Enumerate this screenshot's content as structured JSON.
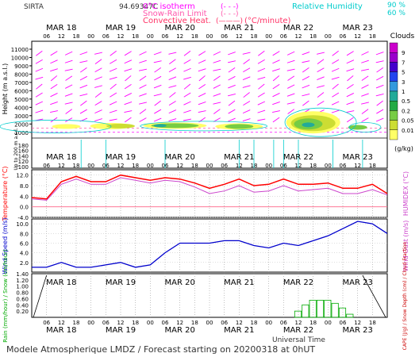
{
  "header": {
    "site": "SIRTA",
    "altitude_readout": "94.69347C",
    "isotherm_label": "0°C isotherm",
    "snow_rain_label": "Snow-Rain Limit",
    "convective_label": "Convective Heat.",
    "convective_unit": "(°C/minute)",
    "dash_marker": "(- - -)",
    "line_marker": "(———)",
    "rh_label": "Relative Humidity",
    "rh_90": "90 %",
    "rh_60": "60 %"
  },
  "footer": {
    "title": "Modele Atmospherique LMDZ / Forecast starting on 20200318 at 0hUT",
    "xaxis": "Universal Time"
  },
  "colors": {
    "temperature": "#ff0000",
    "humidex": "#cc44cc",
    "wind_speed": "#0000cc",
    "wind_arrows": "#ff00ff",
    "rh_contour": "#00cccc",
    "isotherm": "#ff00ff",
    "rain": "#00aa00",
    "snow": "#0000ff"
  },
  "days": [
    "MAR 18",
    "MAR 19",
    "MAR 20",
    "MAR 21",
    "MAR 22",
    "MAR 23"
  ],
  "hour_ticks": [
    "06",
    "12",
    "18",
    "00"
  ],
  "clouds_legend": {
    "title": "Clouds",
    "unit": "(g/kg)",
    "labels": [
      "9",
      "7",
      "5",
      "3",
      "1",
      "0.5",
      "0.2",
      "0.05",
      "0.01"
    ],
    "colors": [
      "#cc00cc",
      "#9900cc",
      "#4400cc",
      "#2244ee",
      "#3399dd",
      "#22aa99",
      "#22aa44",
      "#77cc44",
      "#ccdd33",
      "#ffff66"
    ]
  },
  "chart_data": [
    {
      "type": "heatmap",
      "title": "Clouds",
      "ylabel": "Height (m a.s.l.)",
      "ylabel_lower": "Up to 200 m a.s.l.",
      "yticks_upper": [
        1000,
        2000,
        3000,
        4000,
        5000,
        6000,
        7000,
        8000,
        9000,
        10000,
        11000
      ],
      "yticks_lower": [
        100,
        120,
        140,
        160,
        180
      ],
      "cloud_layer": {
        "height_m": [
          1500,
          2500
        ],
        "peak_value_gkg": 0.5
      }
    },
    {
      "type": "line",
      "ylabel": "Temperature (°C)",
      "ylabel_right": "HUMIDEX (°C)",
      "yticks": [
        -4.0,
        0.0,
        4.0,
        8.0,
        12.0
      ],
      "ylim": [
        -4,
        14
      ],
      "x_hours": [
        0,
        6,
        12,
        18,
        24,
        30,
        36,
        42,
        48,
        54,
        60,
        66,
        72,
        78,
        84,
        90,
        96,
        102,
        108,
        114,
        120,
        126,
        132,
        138,
        144
      ],
      "series": [
        {
          "name": "Temperature",
          "values": [
            3.5,
            3.0,
            9.5,
            11.5,
            9.5,
            9.5,
            12.0,
            11.0,
            10.0,
            11.0,
            10.5,
            9.0,
            7.0,
            8.5,
            10.5,
            8.0,
            8.5,
            10.5,
            8.5,
            8.5,
            9.0,
            7.0,
            7.0,
            8.5,
            5.0
          ]
        },
        {
          "name": "HUMIDEX",
          "values": [
            3.0,
            2.5,
            8.5,
            10.5,
            8.5,
            8.5,
            11.0,
            10.0,
            9.0,
            10.0,
            9.5,
            7.5,
            5.0,
            6.0,
            8.0,
            5.5,
            6.0,
            8.0,
            6.0,
            6.5,
            7.0,
            5.0,
            5.0,
            6.5,
            4.5
          ]
        }
      ]
    },
    {
      "type": "line",
      "ylabel": "Wind Speed (m/s)",
      "ylabel_right": "Wind Gust (m/s)",
      "yticks": [
        2.0,
        4.0,
        6.0,
        8.0,
        10.0
      ],
      "ylim": [
        0,
        11
      ],
      "x_hours": [
        0,
        6,
        12,
        18,
        24,
        30,
        36,
        42,
        48,
        54,
        60,
        66,
        72,
        78,
        84,
        90,
        96,
        102,
        108,
        114,
        120,
        126,
        132,
        138,
        144
      ],
      "series": [
        {
          "name": "Wind Speed",
          "values": [
            1.0,
            1.0,
            2.0,
            1.0,
            1.0,
            1.5,
            2.0,
            1.0,
            1.5,
            4.0,
            6.0,
            6.0,
            6.0,
            6.5,
            6.5,
            5.5,
            5.0,
            6.0,
            5.5,
            6.5,
            7.5,
            9.0,
            10.5,
            10.0,
            8.0
          ]
        }
      ]
    },
    {
      "type": "bar",
      "ylabel": "Rain (mm/hour) / Snow (cm/hour)",
      "ylabel_right": "CAPE (J/g) / Snow Depth (cm) / Cloud Fraction",
      "yticks": [
        0.2,
        0.4,
        0.6,
        0.8,
        1.0,
        1.2,
        1.4
      ],
      "ylim": [
        0,
        1.4
      ],
      "x_hours": [
        108,
        111,
        114,
        117,
        120,
        123,
        126,
        129
      ],
      "series": [
        {
          "name": "Rain",
          "values": [
            0.2,
            0.4,
            0.55,
            0.55,
            0.55,
            0.45,
            0.3,
            0.1
          ]
        }
      ]
    }
  ]
}
